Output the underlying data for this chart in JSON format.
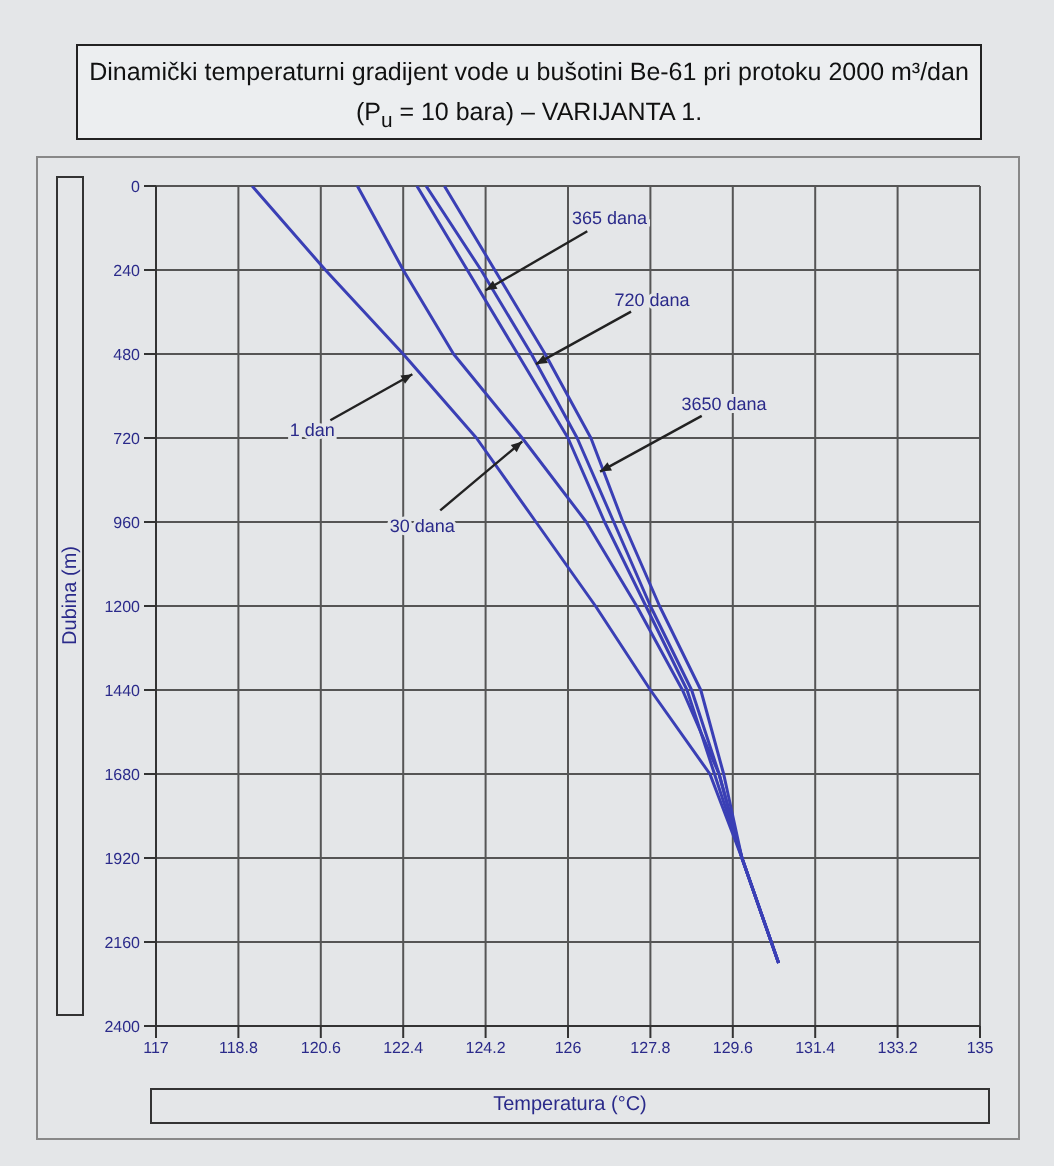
{
  "chart_data": {
    "type": "line",
    "title": "Dinamički temperaturni gradijent vode u bušotini Be-61 pri protoku 2000 m³/dan (P$_{u}$ = 10 bara) – VARIJANTA 1.",
    "xlabel": "Temperatura (°C)",
    "ylabel": "Dubina (m)",
    "xlim": [
      117,
      135
    ],
    "xticks": [
      117,
      118.8,
      120.6,
      122.4,
      124.2,
      126,
      127.8,
      129.6,
      131.4,
      133.2,
      135
    ],
    "ylim": [
      2400,
      0
    ],
    "yticks": [
      0,
      240,
      480,
      720,
      960,
      1200,
      1440,
      1680,
      1920,
      2160,
      2400
    ],
    "grid": true,
    "marker": "none",
    "line_style": "solid",
    "series": [
      {
        "color": "#3a3fb5",
        "x": [
          119.1,
          120.7,
          122.4,
          124.0,
          125.3,
          126.6,
          127.8,
          129.1,
          129.8,
          130.6
        ],
        "values": [
          0,
          240,
          480,
          720,
          960,
          1200,
          1440,
          1680,
          1920,
          2220
        ]
      },
      {
        "color": "#3a3fb5",
        "x": [
          121.4,
          122.4,
          123.5,
          125.0,
          126.4,
          127.5,
          128.5,
          129.3,
          129.8,
          130.6
        ],
        "values": [
          0,
          240,
          480,
          720,
          960,
          1200,
          1440,
          1680,
          1920,
          2220
        ]
      },
      {
        "color": "#3a3fb5",
        "x": [
          122.7,
          123.8,
          124.9,
          126.0,
          126.8,
          127.7,
          128.6,
          129.2,
          129.8,
          130.6
        ],
        "values": [
          0,
          240,
          480,
          720,
          960,
          1200,
          1440,
          1680,
          1920,
          2220
        ]
      },
      {
        "color": "#3a3fb5",
        "x": [
          122.9,
          124.1,
          125.2,
          126.2,
          127.0,
          127.8,
          128.7,
          129.3,
          129.8,
          130.6
        ],
        "values": [
          0,
          240,
          480,
          720,
          960,
          1200,
          1440,
          1680,
          1920,
          2220
        ]
      },
      {
        "color": "#3a3fb5",
        "x": [
          123.3,
          124.4,
          125.5,
          126.5,
          127.2,
          128.0,
          128.9,
          129.4,
          129.8,
          130.6
        ],
        "values": [
          0,
          240,
          480,
          720,
          960,
          1200,
          1440,
          1680,
          1920,
          2220
        ]
      }
    ],
    "annotations": [
      {
        "text": "365 dana",
        "x": 124.2,
        "y": 298
      },
      {
        "text": "720 dana",
        "x": 125.3,
        "y": 509
      },
      {
        "text": "3650 dana",
        "x": 126.7,
        "y": 816
      },
      {
        "text": "1 dan",
        "x": 122.6,
        "y": 538
      },
      {
        "text": "30 dana",
        "x": 125.0,
        "y": 730
      }
    ]
  }
}
